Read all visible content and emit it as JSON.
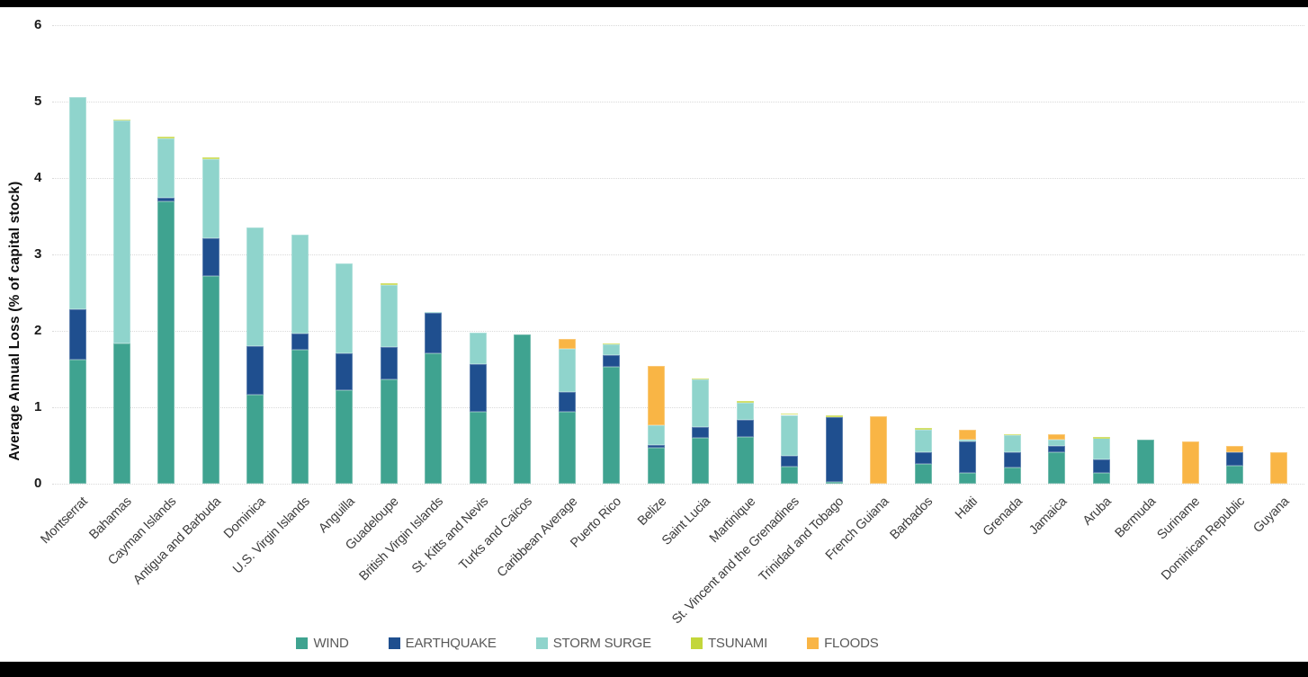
{
  "figure": {
    "top_border_color": "#000000",
    "bottom_border_color": "#000000",
    "background": "#ffffff",
    "gridline_color": "#d9d9d9"
  },
  "chart_data": {
    "type": "stacked-bar",
    "title": "",
    "xlabel": "",
    "ylabel": "Average Annual Loss (% of capital stock)",
    "ylim": [
      0,
      6
    ],
    "yticks": [
      0,
      1,
      2,
      3,
      4,
      5,
      6
    ],
    "grid": "horizontal-dotted",
    "legend_position": "bottom-center",
    "categories": [
      "Montserrat",
      "Bahamas",
      "Cayman Islands",
      "Antigua and Barbuda",
      "Dominica",
      "U.S. Virgin Islands",
      "Anguilla",
      "Guadeloupe",
      "British Virgin Islands",
      "St. Kitts and Nevis",
      "Turks and Caicos",
      "Caribbean Average",
      "Puerto Rico",
      "Belize",
      "Saint Lucia",
      "Martinique",
      "St. Vincent and the Grenadines",
      "Trinidad and Tobago",
      "French Guiana",
      "Barbados",
      "Haiti",
      "Grenada",
      "Jamaica",
      "Aruba",
      "Bermuda",
      "Suriname",
      "Dominican Republic",
      "Guyana"
    ],
    "series": [
      {
        "name": "WIND",
        "color": "#3FA390",
        "values": [
          1.62,
          1.83,
          3.69,
          2.72,
          1.16,
          1.75,
          1.22,
          1.36,
          1.71,
          0.94,
          1.95,
          0.94,
          1.53,
          0.47,
          0.6,
          0.61,
          0.22,
          0.02,
          0,
          0.26,
          0.14,
          0.21,
          0.41,
          0.14,
          0.58,
          0,
          0.24,
          0
        ]
      },
      {
        "name": "EARTHQUAKE",
        "color": "#1F4F8F",
        "values": [
          0.66,
          0,
          0.05,
          0.49,
          0.64,
          0.22,
          0.49,
          0.43,
          0.52,
          0.63,
          0,
          0.26,
          0.15,
          0.04,
          0.14,
          0.23,
          0.14,
          0.85,
          0,
          0.15,
          0.41,
          0.2,
          0.08,
          0.18,
          0,
          0,
          0.17,
          0
        ]
      },
      {
        "name": "STORM SURGE",
        "color": "#8FD4CC",
        "values": [
          2.78,
          2.92,
          0.78,
          1.04,
          1.55,
          1.29,
          1.17,
          0.81,
          0.02,
          0.41,
          0,
          0.56,
          0.14,
          0.25,
          0.62,
          0.22,
          0.54,
          0,
          0,
          0.3,
          0.03,
          0.23,
          0.09,
          0.28,
          0,
          0,
          0,
          0
        ]
      },
      {
        "name": "TSUNAMI",
        "color": "#C3D63A",
        "values": [
          0,
          0.02,
          0.02,
          0.02,
          0,
          0,
          0,
          0.02,
          0,
          0,
          0,
          0,
          0.02,
          0,
          0.02,
          0.02,
          0.02,
          0.02,
          0,
          0.02,
          0,
          0.01,
          0,
          0.01,
          0,
          0,
          0,
          0
        ]
      },
      {
        "name": "FLOODS",
        "color": "#F9B545",
        "values": [
          0,
          0,
          0,
          0,
          0,
          0,
          0,
          0,
          0,
          0,
          0,
          0.13,
          0,
          0.78,
          0,
          0,
          0,
          0,
          0.88,
          0,
          0.13,
          0,
          0.07,
          0,
          0,
          0.55,
          0.08,
          0.41
        ]
      }
    ]
  }
}
